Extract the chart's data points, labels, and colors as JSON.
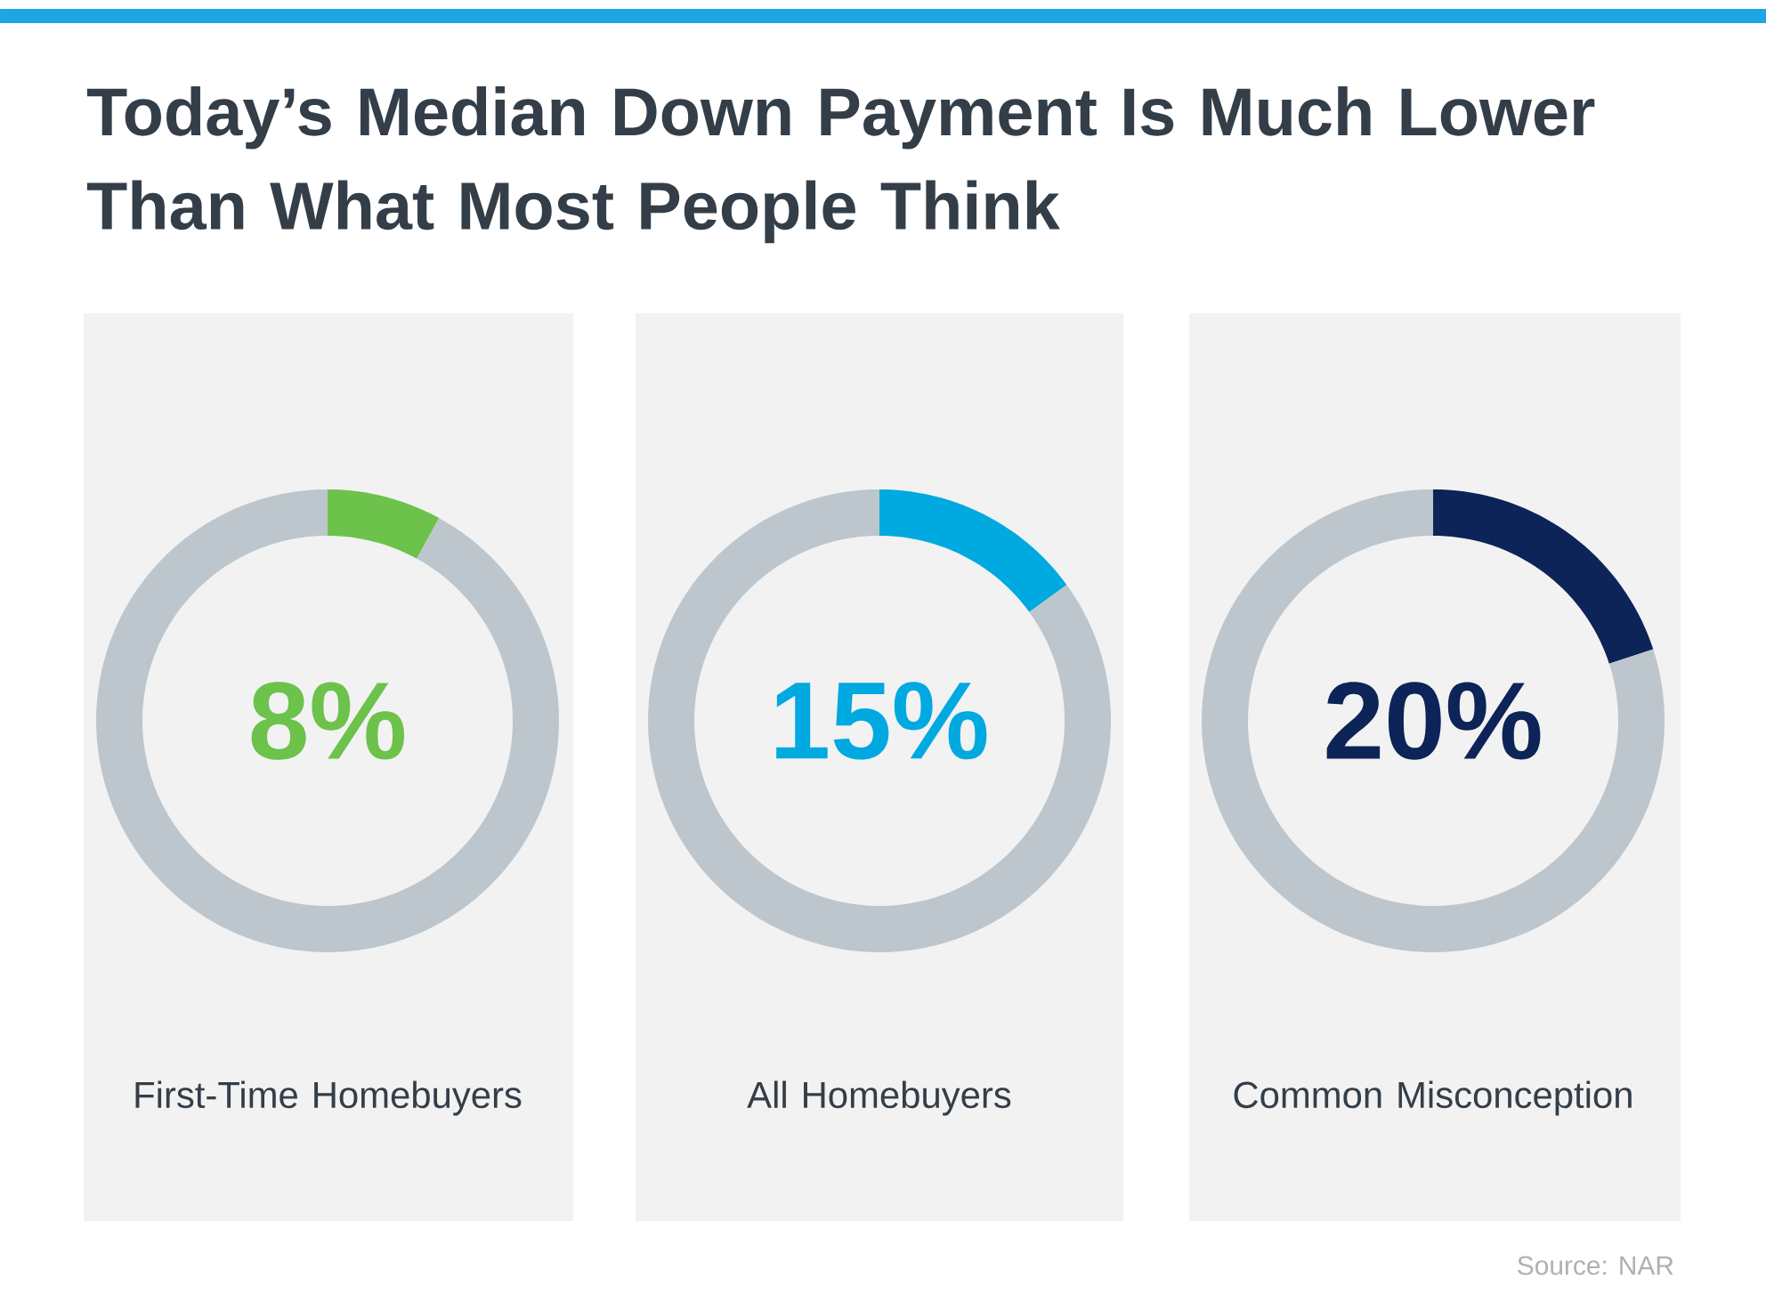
{
  "chart_data": [
    {
      "type": "donut",
      "title": "Today’s Median Down Payment Is Much Lower Than What Most People Think",
      "categories": [
        null,
        null
      ],
      "values": [
        8,
        92
      ],
      "colors": [
        "#6cc24a",
        "#bcc6cc"
      ],
      "annotations": [
        "8%"
      ],
      "xlabel": "First-Time Homebuyers"
    },
    {
      "type": "donut",
      "categories": [
        null,
        null
      ],
      "values": [
        15,
        85
      ],
      "colors": [
        "#00a9e0",
        "#bcc6cc"
      ],
      "annotations": [
        "15%"
      ],
      "xlabel": "All Homebuyers"
    },
    {
      "type": "donut",
      "categories": [
        null,
        null
      ],
      "values": [
        20,
        80
      ],
      "colors": [
        "#0c2457",
        "#bcc6cc"
      ],
      "annotations": [
        "20%",
        "Source: NAR"
      ],
      "xlabel": "Common Misconception"
    }
  ]
}
